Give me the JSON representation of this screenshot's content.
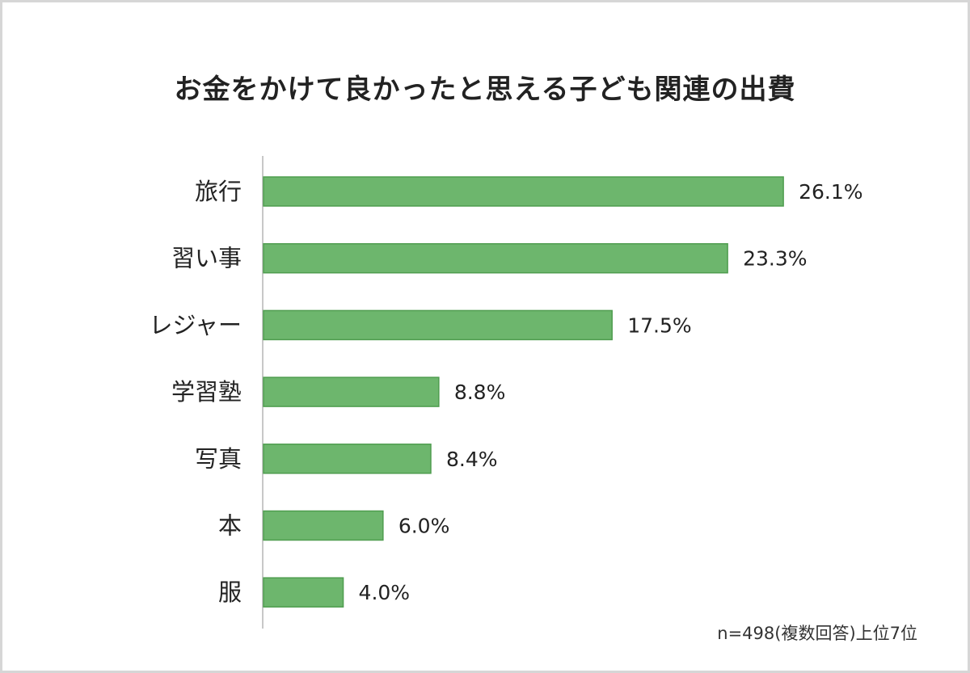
{
  "chart_data": {
    "type": "bar",
    "orientation": "horizontal",
    "title": "お金をかけて良かったと思える子ども関連の出費",
    "categories": [
      "旅行",
      "習い事",
      "レジャー",
      "学習塾",
      "写真",
      "本",
      "服"
    ],
    "values": [
      26.1,
      23.3,
      17.5,
      8.8,
      8.4,
      6.0,
      4.0
    ],
    "value_labels": [
      "26.1%",
      "23.3%",
      "17.5%",
      "8.8%",
      "8.4%",
      "6.0%",
      "4.0%"
    ],
    "unit": "%",
    "xlabel": "",
    "ylabel": "",
    "xlim": [
      0,
      30
    ],
    "grid": false,
    "legend": "none",
    "bar_color": "#6db66d",
    "bar_border": "#4f9d4f",
    "note": "n=498(複数回答)上位7位"
  }
}
